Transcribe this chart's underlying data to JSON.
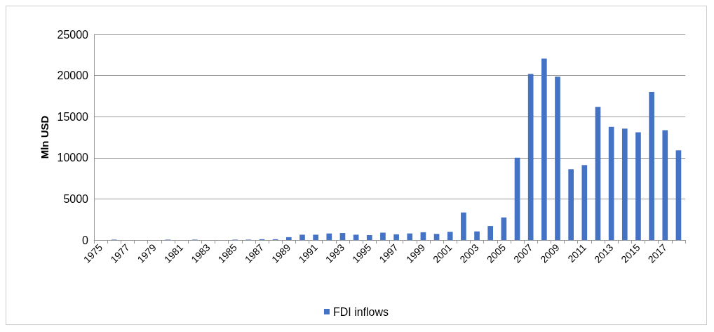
{
  "chart_data": {
    "type": "bar",
    "ylabel": "Mln USD",
    "categories": [
      "1975",
      null,
      "1977",
      null,
      "1979",
      null,
      "1981",
      null,
      "1983",
      null,
      "1985",
      null,
      "1987",
      null,
      "1989",
      null,
      "1991",
      null,
      "1993",
      null,
      "1995",
      null,
      "1997",
      null,
      "1999",
      null,
      "2001",
      null,
      "2003",
      null,
      "2005",
      null,
      "2007",
      null,
      "2009",
      null,
      "2011",
      null,
      "2013",
      null,
      "2015",
      null,
      "2017",
      null
    ],
    "series": [
      {
        "name": "FDI inflows",
        "color": "#4472c4",
        "values": [
          0,
          50,
          0,
          0,
          0,
          50,
          0,
          50,
          0,
          0,
          50,
          50,
          100,
          100,
          350,
          650,
          650,
          800,
          850,
          650,
          600,
          900,
          700,
          800,
          950,
          750,
          1000,
          3350,
          1050,
          1700,
          2750,
          10000,
          20200,
          22050,
          19850,
          8600,
          9100,
          16200,
          13750,
          13550,
          13100,
          18000,
          13350,
          10900
        ]
      }
    ],
    "ylim": [
      0,
      25000
    ],
    "yticks": [
      0,
      5000,
      10000,
      15000,
      20000,
      25000
    ],
    "grid": "y",
    "legend": "bottom"
  }
}
